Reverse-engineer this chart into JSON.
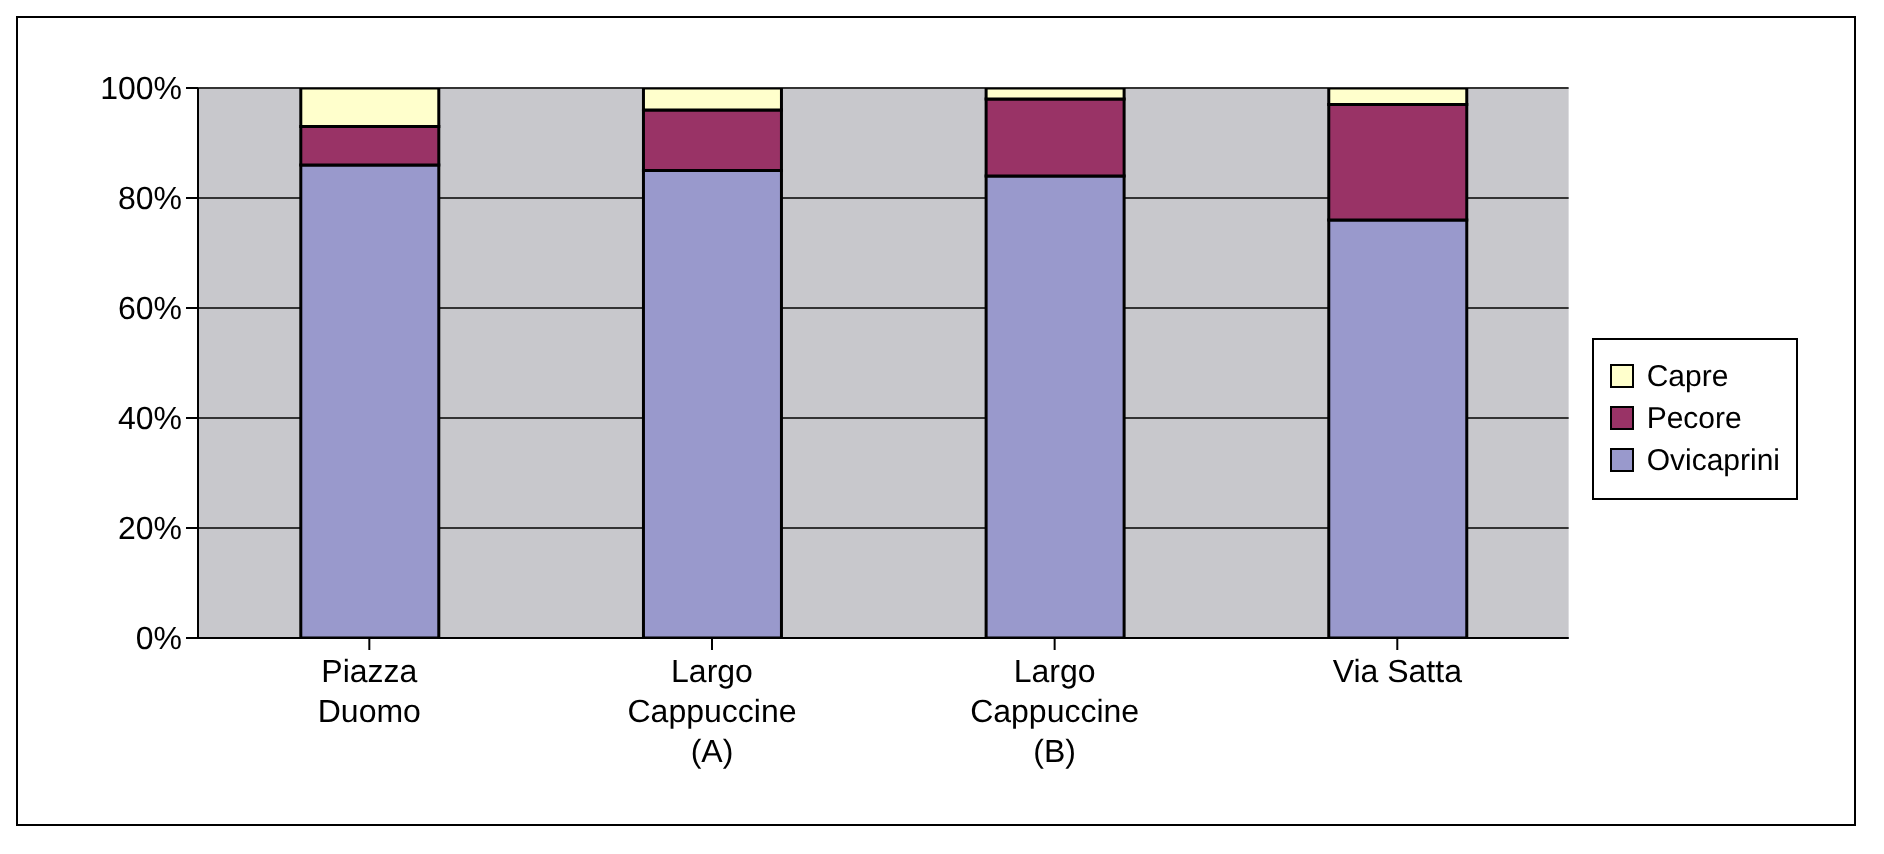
{
  "chart_data": {
    "type": "bar",
    "stacked": true,
    "categories": [
      "Piazza Duomo",
      "Largo Cappuccine (A)",
      "Largo Cappuccine (B)",
      "Via Satta"
    ],
    "series": [
      {
        "name": "Ovicaprini",
        "color": "#9999cc",
        "values": [
          86,
          85,
          84,
          76
        ]
      },
      {
        "name": "Pecore",
        "color": "#993366",
        "values": [
          7,
          11,
          14,
          21
        ]
      },
      {
        "name": "Capre",
        "color": "#ffffcc",
        "values": [
          7,
          4,
          2,
          3
        ]
      }
    ],
    "ylim": [
      0,
      100
    ],
    "yticks": [
      {
        "value": 0,
        "label": "0%"
      },
      {
        "value": 20,
        "label": "20%"
      },
      {
        "value": 40,
        "label": "40%"
      },
      {
        "value": 60,
        "label": "60%"
      },
      {
        "value": 80,
        "label": "80%"
      },
      {
        "value": 100,
        "label": "100%"
      }
    ],
    "grid": "y",
    "legend": "right"
  }
}
